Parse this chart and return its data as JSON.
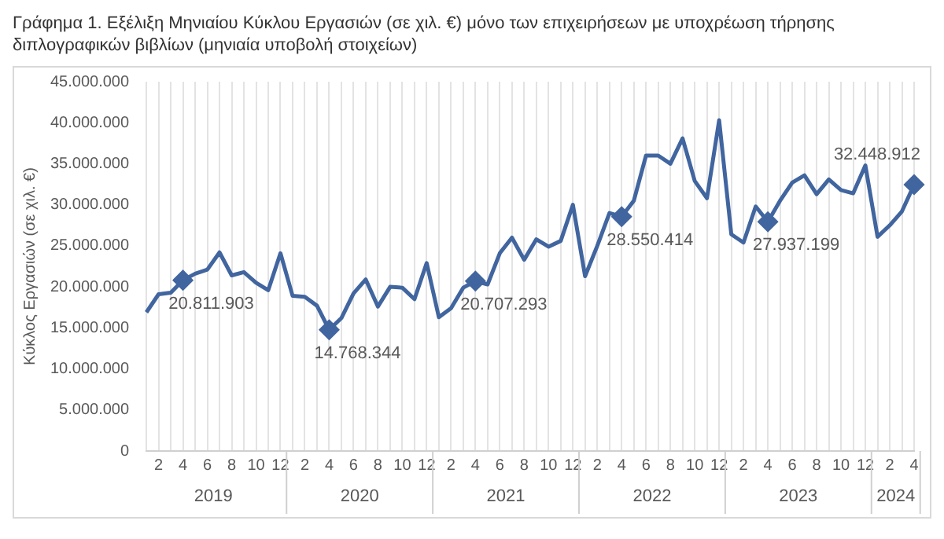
{
  "chart_data": {
    "type": "line",
    "title": "Γράφημα 1. Εξέλιξη Μηνιαίου Κύκλου Εργασιών (σε χιλ. €) μόνο των επιχειρήσεων με υποχρέωση τήρησης διπλογραφικών βιβλίων (μηνιαία υποβολή στοιχείων)",
    "ylabel": "Κύκλος Εργασιών (σε χιλ. €)",
    "categories": [
      null,
      "2",
      null,
      "4",
      null,
      "6",
      null,
      "8",
      null,
      "10",
      null,
      "12",
      null,
      "2",
      null,
      "4",
      null,
      "6",
      null,
      "8",
      null,
      "10",
      null,
      "12",
      null,
      "2",
      null,
      "4",
      null,
      "6",
      null,
      "8",
      null,
      "10",
      null,
      "12",
      null,
      "2",
      null,
      "4",
      null,
      "6",
      null,
      "8",
      null,
      "10",
      null,
      "12",
      null,
      "2",
      null,
      "4",
      null,
      "6",
      null,
      "8",
      null,
      "10",
      null,
      "12",
      null,
      "2",
      null,
      "4"
    ],
    "annotations": [
      "2019",
      "2020",
      "2021",
      "2022",
      "2023",
      "2024"
    ],
    "series": [
      {
        "color": "#41659f",
        "values": [
          16900000,
          19100000,
          19300000,
          20811903,
          21600000,
          22100000,
          24200000,
          21400000,
          21800000,
          20500000,
          19600000,
          24100000,
          18900000,
          18800000,
          17700000,
          14768344,
          16200000,
          19200000,
          20900000,
          17600000,
          20000000,
          19900000,
          18500000,
          22900000,
          16300000,
          17400000,
          19900000,
          20707293,
          20300000,
          24100000,
          26000000,
          23300000,
          25800000,
          24900000,
          25600000,
          30000000,
          21300000,
          25000000,
          29000000,
          28550414,
          30500000,
          36000000,
          36000000,
          35000000,
          38100000,
          32900000,
          30800000,
          40300000,
          26400000,
          25400000,
          29800000,
          27937199,
          30500000,
          32700000,
          33600000,
          31300000,
          33100000,
          31800000,
          31400000,
          34800000,
          26100000,
          27500000,
          29200000,
          32448912
        ],
        "value_labels": [
          null,
          null,
          null,
          "20.811.903",
          null,
          null,
          null,
          null,
          null,
          null,
          null,
          null,
          null,
          null,
          null,
          "14.768.344",
          null,
          null,
          null,
          null,
          null,
          null,
          null,
          null,
          null,
          null,
          null,
          "20.707.293",
          null,
          null,
          null,
          null,
          null,
          null,
          null,
          null,
          null,
          null,
          null,
          "28.550.414",
          null,
          null,
          null,
          null,
          null,
          null,
          null,
          null,
          null,
          null,
          null,
          "27.937.199",
          null,
          null,
          null,
          null,
          null,
          null,
          null,
          null,
          null,
          null,
          null,
          "32.448.912"
        ]
      }
    ],
    "grid": "x",
    "legend": false,
    "ylim": [
      0,
      45000000
    ],
    "yticks": [
      {
        "value": 0,
        "label": "0"
      },
      {
        "value": 5000000,
        "label": "5.000.000"
      },
      {
        "value": 10000000,
        "label": "10.000.000"
      },
      {
        "value": 15000000,
        "label": "15.000.000"
      },
      {
        "value": 20000000,
        "label": "20.000.000"
      },
      {
        "value": 25000000,
        "label": "25.000.000"
      },
      {
        "value": 30000000,
        "label": "30.000.000"
      },
      {
        "value": 35000000,
        "label": "35.000.000"
      },
      {
        "value": 40000000,
        "label": "40.000.000"
      },
      {
        "value": 45000000,
        "label": "45.000.000"
      }
    ]
  }
}
